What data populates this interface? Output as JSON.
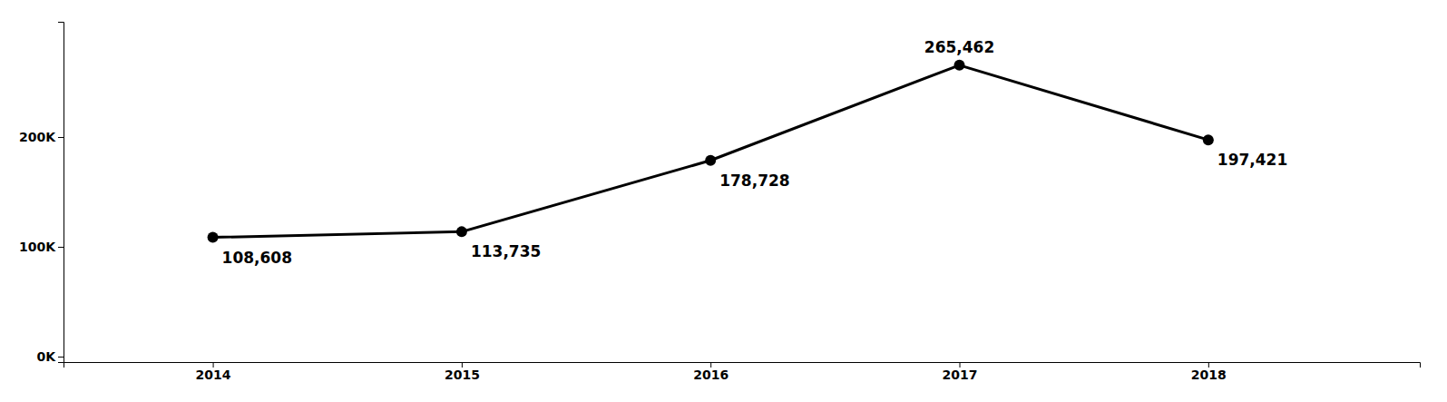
{
  "chart_data": {
    "type": "line",
    "x": [
      2014,
      2015,
      2016,
      2017,
      2018
    ],
    "values": [
      108608,
      113735,
      178728,
      265462,
      197421
    ],
    "value_labels": [
      "108,608",
      "113,735",
      "178,728",
      "265,462",
      "197,421"
    ],
    "data_labels": true,
    "color": "#000000",
    "marker": "circle",
    "xlim": [
      2013.4,
      2018.85
    ],
    "xticks": [
      2014,
      2015,
      2016,
      2017,
      2018
    ],
    "ylim": [
      -5000,
      305000
    ],
    "yticks": [
      {
        "value": 0,
        "label": "0K"
      },
      {
        "value": 100000,
        "label": "100K"
      },
      {
        "value": 200000,
        "label": "200K"
      }
    ],
    "grid": false
  }
}
